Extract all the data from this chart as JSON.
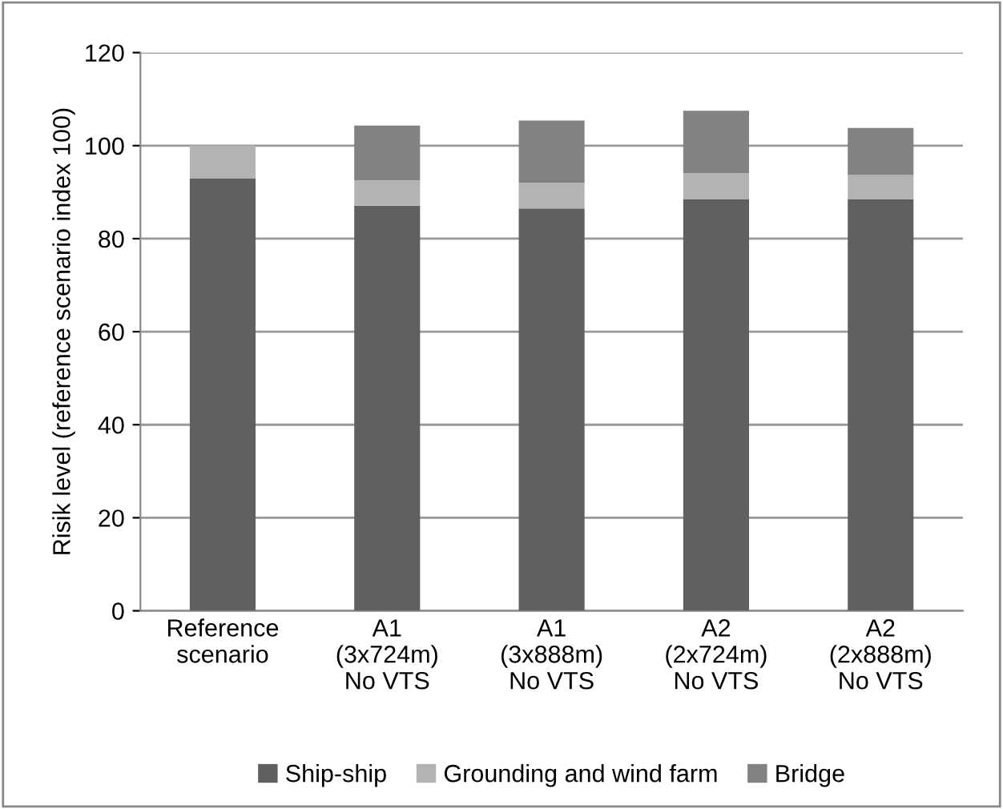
{
  "chart_data": {
    "type": "bar",
    "stacked": true,
    "ylabel": "Risik level (reference scenario index 100)",
    "categories": [
      "Reference\nscenario",
      "A1\n(3x724m)\nNo VTS",
      "A1\n(3x888m)\nNo VTS",
      "A2\n(2x724m)\nNo VTS",
      "A2\n(2x888m)\nNo VTS"
    ],
    "series": [
      {
        "name": "Ship-ship",
        "color": "#606060",
        "values": [
          93,
          87.1,
          86.5,
          88.5,
          88.5
        ]
      },
      {
        "name": "Grounding and wind farm",
        "color": "#b3b3b3",
        "values": [
          7,
          5.4,
          5.5,
          5.6,
          5.2
        ]
      },
      {
        "name": "Bridge",
        "color": "#828282",
        "values": [
          0,
          11.8,
          13.4,
          13.4,
          10.1
        ]
      }
    ],
    "ylim": [
      0,
      120
    ],
    "yticks": [
      0,
      20,
      40,
      60,
      80,
      100,
      120
    ],
    "grid": "y",
    "legend": "bottom"
  }
}
